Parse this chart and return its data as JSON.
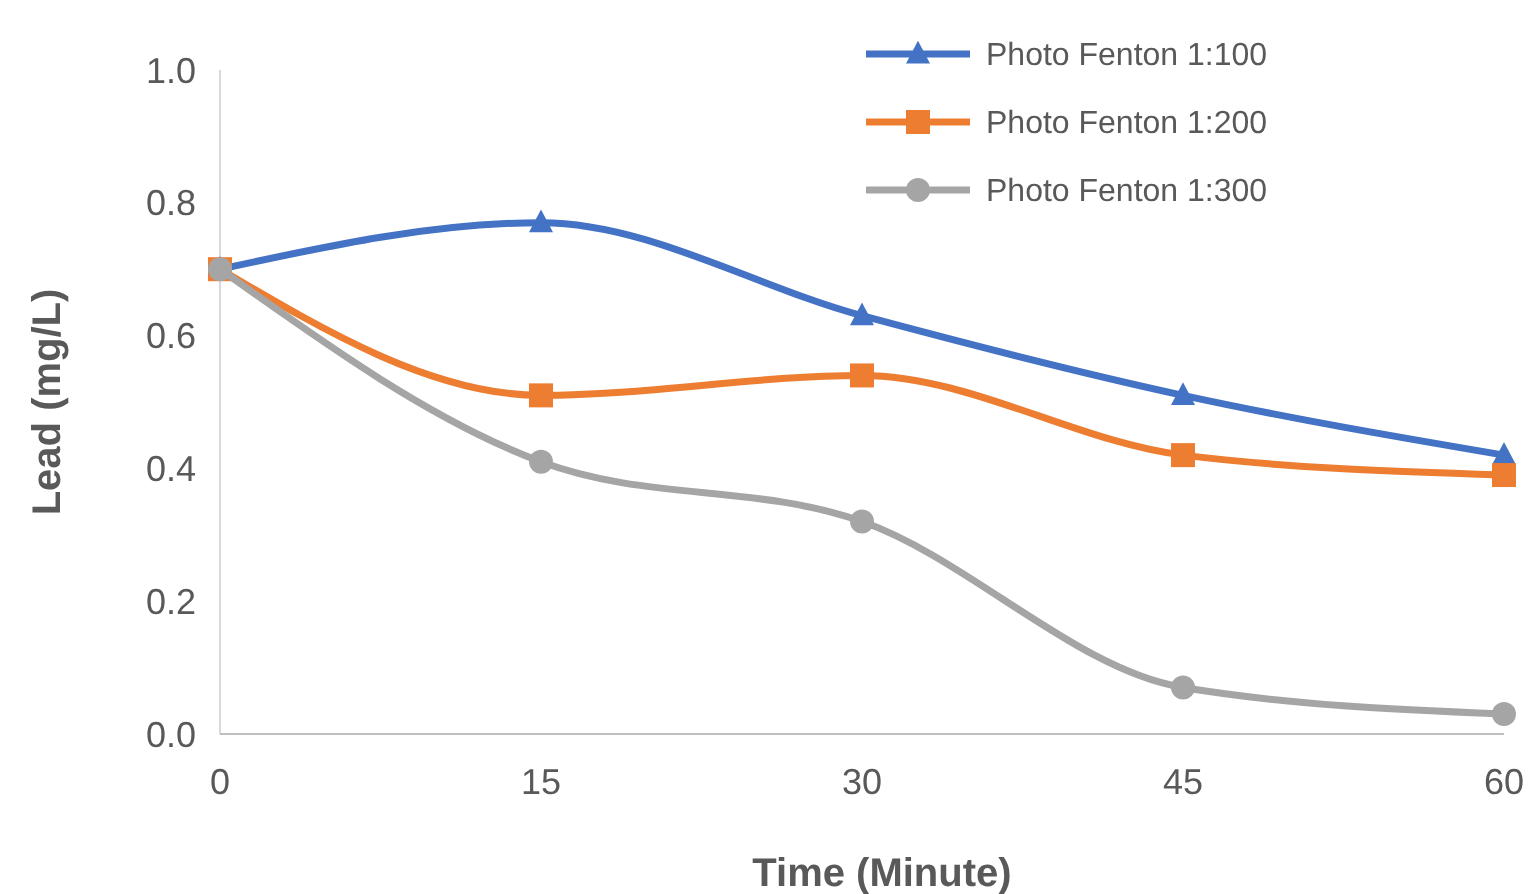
{
  "chart_data": {
    "type": "line",
    "xlabel": "Time (Minute)",
    "ylabel": "Lead (mg/L)",
    "x": [
      0,
      15,
      30,
      45,
      60
    ],
    "xlim": [
      0,
      60
    ],
    "xticks": [
      0,
      15,
      30,
      45,
      60
    ],
    "ylim": [
      0,
      1
    ],
    "yticks": [
      {
        "value": 0,
        "label": "0.0"
      },
      {
        "value": 0.2,
        "label": "0.2"
      },
      {
        "value": 0.4,
        "label": "0.4"
      },
      {
        "value": 0.6,
        "label": "0.6"
      },
      {
        "value": 0.8,
        "label": "0.8"
      },
      {
        "value": 1,
        "label": "1.0"
      }
    ],
    "grid": false,
    "legend": "top right",
    "line_style": "solid",
    "series": [
      {
        "name": "Photo Fenton 1:100",
        "color": "#4472c4",
        "marker": "triangle",
        "values": [
          0.7,
          0.77,
          0.63,
          0.51,
          0.42
        ]
      },
      {
        "name": "Photo Fenton 1:200",
        "color": "#ed7d31",
        "marker": "square",
        "values": [
          0.7,
          0.51,
          0.54,
          0.42,
          0.39
        ]
      },
      {
        "name": "Photo Fenton 1:300",
        "color": "#a5a5a5",
        "marker": "circle",
        "values": [
          0.7,
          0.41,
          0.32,
          0.07,
          0.03
        ]
      }
    ]
  }
}
